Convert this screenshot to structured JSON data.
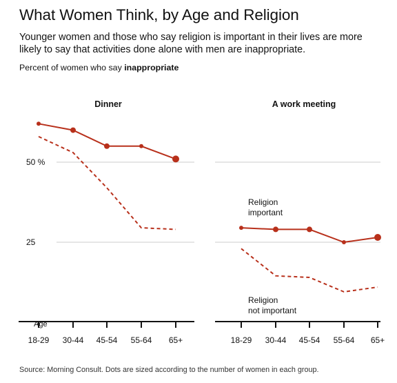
{
  "title": "What Women Think, by Age and Religion",
  "subtitle": "Younger women and those who say religion is important in their lives are more likely to say that activities done alone with men are inappropriate.",
  "unit_label": {
    "prefix": "Percent of women who say ",
    "emphasis": "inappropriate"
  },
  "source": "Source: Morning Consult. Dots are sized according to the number of women in each group.",
  "colors": {
    "series": "#b8301b",
    "grid": "#cccccc",
    "axis": "#121212"
  },
  "chart_data": [
    {
      "type": "line",
      "title": "Dinner",
      "xlabel": "Age",
      "categories": [
        "18-29",
        "30-44",
        "45-54",
        "55-64",
        "65+"
      ],
      "y_ticks": [
        "50 %",
        "25"
      ],
      "y_tick_values": [
        50,
        25
      ],
      "ylim": [
        0,
        70
      ],
      "grid": true,
      "series": [
        {
          "name": "Religion important",
          "style": "solid",
          "markers": true,
          "values": [
            62,
            60,
            55,
            55,
            51
          ],
          "marker_size": [
            3,
            4,
            4,
            3,
            5
          ]
        },
        {
          "name": "Religion not important",
          "style": "dashed",
          "markers": false,
          "values": [
            58,
            53,
            42,
            29.5,
            29
          ]
        }
      ]
    },
    {
      "type": "line",
      "title": "A work meeting",
      "xlabel": "",
      "categories": [
        "18-29",
        "30-44",
        "45-54",
        "55-64",
        "65+"
      ],
      "ylim": [
        0,
        70
      ],
      "grid": true,
      "series": [
        {
          "name": "Religion important",
          "label_lines": [
            "Religion",
            "important"
          ],
          "style": "solid",
          "markers": true,
          "values": [
            29.5,
            29,
            29,
            25,
            26.5
          ],
          "marker_size": [
            3,
            4,
            4,
            3,
            5
          ]
        },
        {
          "name": "Religion not important",
          "label_lines": [
            "Religion",
            "not important"
          ],
          "style": "dashed",
          "markers": false,
          "values": [
            23,
            14.5,
            14,
            9.5,
            11
          ]
        }
      ]
    }
  ]
}
